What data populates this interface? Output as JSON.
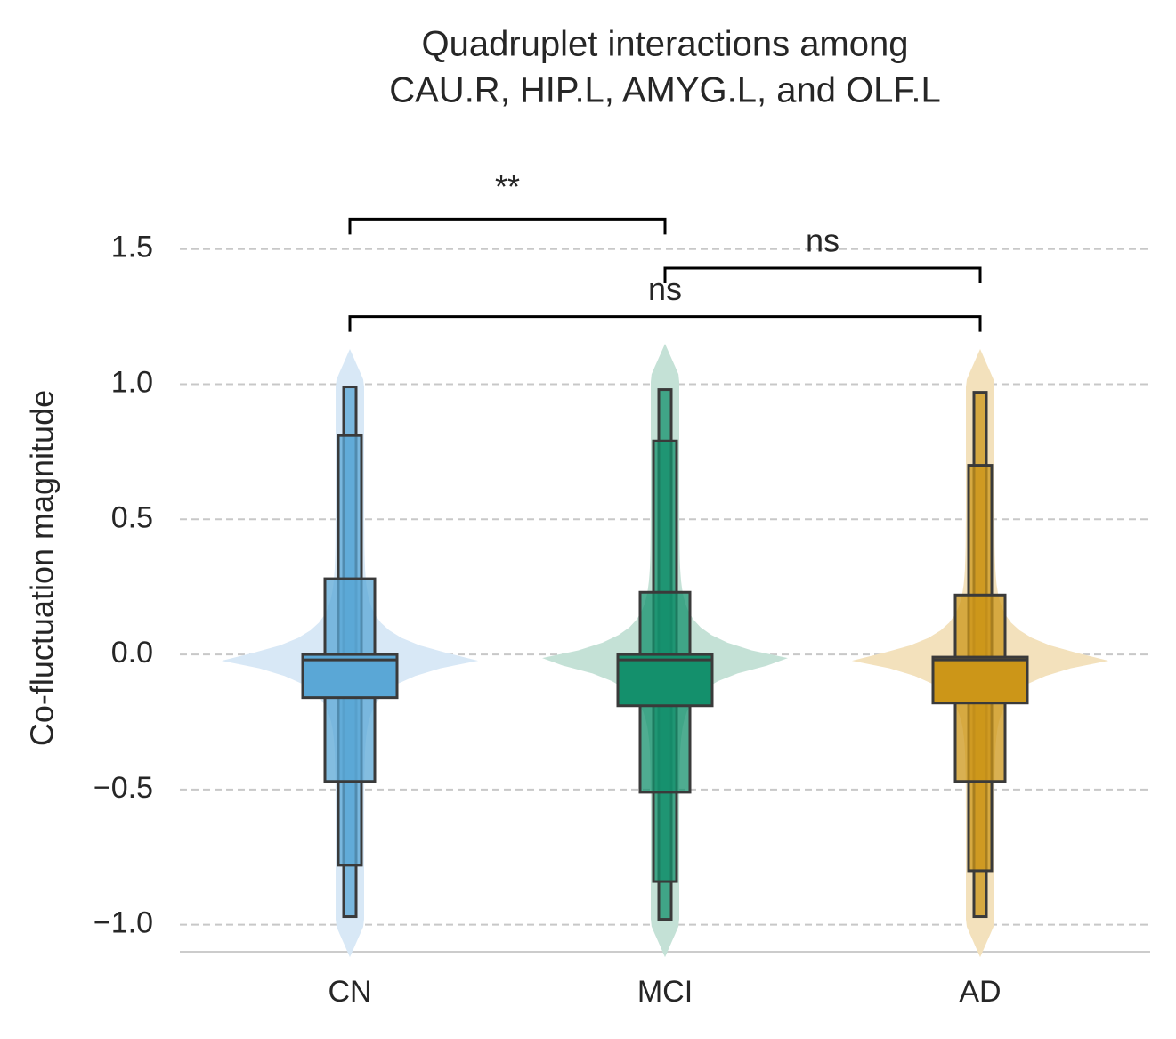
{
  "chart_data": {
    "type": "boxen",
    "title": [
      "Quadruplet interactions among",
      "CAU.R, HIP.L, AMYG.L, and OLF.L"
    ],
    "ylabel": "Co-fluctuation magnitude",
    "categories": [
      "CN",
      "MCI",
      "AD"
    ],
    "ylim": [
      -1.1,
      1.7
    ],
    "yticks": [
      {
        "value": -1,
        "label": "−1.0"
      },
      {
        "value": -0.5,
        "label": "−0.5"
      },
      {
        "value": 0,
        "label": "0.0"
      },
      0.5,
      {
        "value": 1,
        "label": "1.0"
      },
      1.5
    ],
    "grid": true,
    "series": [
      {
        "name": "CN",
        "color": "#5aa7d6",
        "violin_color": "#d8e8f6",
        "median": -0.02,
        "violin_range": [
          -1.12,
          1.13
        ],
        "levels": [
          [
            -0.16,
            0.0
          ],
          [
            -0.47,
            0.28
          ],
          [
            -0.78,
            0.81
          ],
          [
            -0.97,
            0.99
          ]
        ]
      },
      {
        "name": "MCI",
        "color": "#14906c",
        "violin_color": "#c4e1d6",
        "median": -0.02,
        "violin_range": [
          -1.12,
          1.15
        ],
        "levels": [
          [
            -0.19,
            0.0
          ],
          [
            -0.51,
            0.23
          ],
          [
            -0.84,
            0.79
          ],
          [
            -0.98,
            0.98
          ]
        ]
      },
      {
        "name": "AD",
        "color": "#cc9618",
        "violin_color": "#f3e1bc",
        "median": -0.02,
        "violin_range": [
          -1.12,
          1.13
        ],
        "levels": [
          [
            -0.18,
            -0.01
          ],
          [
            -0.47,
            0.22
          ],
          [
            -0.8,
            0.7
          ],
          [
            -0.97,
            0.97
          ]
        ]
      }
    ],
    "annotations": [
      {
        "text": "**",
        "groups": [
          "CN",
          "MCI"
        ],
        "y": 1.61
      },
      {
        "text": "ns",
        "groups": [
          "MCI",
          "AD"
        ],
        "y": 1.43
      },
      {
        "text": "ns",
        "groups": [
          "CN",
          "AD"
        ],
        "y": 1.25
      }
    ]
  }
}
